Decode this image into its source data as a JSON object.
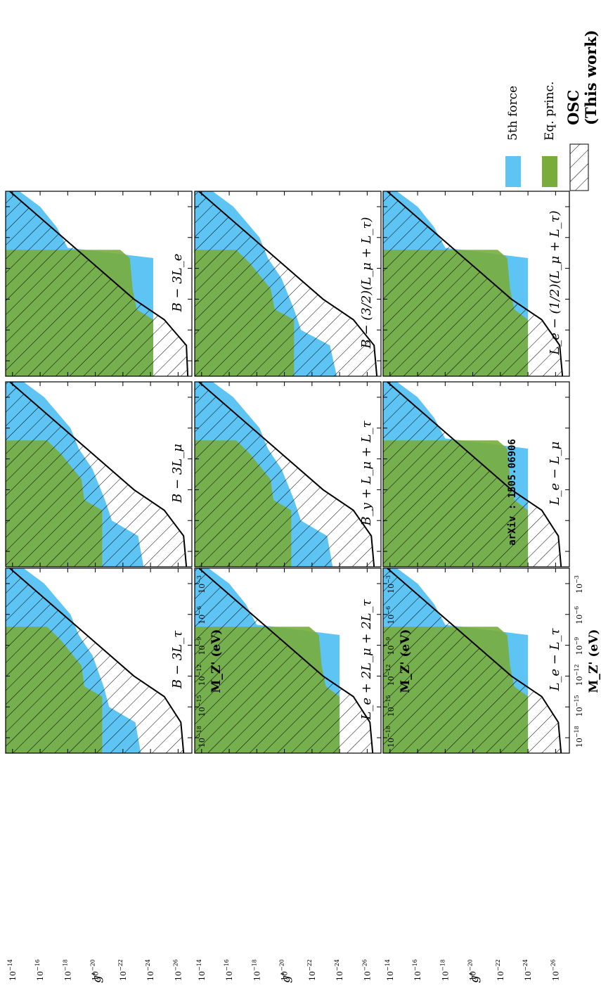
{
  "colors": {
    "fifth_force": "#5ec4f4",
    "eq_principle": "#78ad3c",
    "osc_line": "#000000"
  },
  "legend": {
    "items": [
      {
        "label": "5th force",
        "color": "#5ec4f4"
      },
      {
        "label": "Eq. princ.",
        "color": "#78ad3c"
      }
    ],
    "osc_label": "OSC",
    "osc_sub": "(This work)"
  },
  "annotation": "arXiv : 1505.06906",
  "x_axis_label": "M_Z' (eV)",
  "y_axis_label": "g'",
  "chart_data": [
    {
      "type": "area",
      "panel_label": "B − 3L_e",
      "x_log10_range": [
        -19.5,
        -1.5
      ],
      "y_log10_range": [
        -27,
        -13.5
      ],
      "osc_boundary_log10": [
        [
          -19.5,
          -26.7
        ],
        [
          -16.5,
          -26.6
        ],
        [
          -14,
          -25
        ],
        [
          -12,
          -22.8
        ],
        [
          -1.5,
          -13.8
        ]
      ],
      "fifth_force_log10": [
        [
          -19.5,
          -24.2
        ],
        [
          -8,
          -24.2
        ],
        [
          -7,
          -18
        ],
        [
          -5,
          -17.2
        ],
        [
          -3,
          -16
        ],
        [
          -1.5,
          -14.5
        ]
      ],
      "eq_principle_log10": [
        [
          -19.5,
          -24.2
        ],
        [
          -14,
          -24.2
        ],
        [
          -13,
          -23
        ],
        [
          -11,
          -22.7
        ],
        [
          -8,
          -22.5
        ],
        [
          -7.2,
          -21.8
        ],
        [
          -7.2,
          -13.8
        ]
      ]
    },
    {
      "type": "area",
      "panel_label": "B − 3L_μ",
      "x_log10_range": [
        -19.5,
        -1.5
      ],
      "y_log10_range": [
        -27,
        -13.5
      ],
      "osc_boundary_log10": [
        [
          -19.5,
          -26.6
        ],
        [
          -16.5,
          -26.4
        ],
        [
          -14,
          -25
        ],
        [
          -12,
          -22.8
        ],
        [
          -1.5,
          -13.8
        ]
      ],
      "fifth_force_log10": [
        [
          -19.5,
          -23.5
        ],
        [
          -16.5,
          -23.1
        ],
        [
          -15,
          -21.2
        ],
        [
          -13,
          -20.7
        ],
        [
          -10,
          -19.8
        ],
        [
          -8,
          -18.8
        ],
        [
          -6,
          -18.2
        ],
        [
          -3,
          -16.3
        ],
        [
          -1.5,
          -14.8
        ]
      ],
      "eq_principle_log10": [
        [
          -19.5,
          -20.5
        ],
        [
          -14,
          -20.5
        ],
        [
          -13,
          -19.2
        ],
        [
          -11,
          -19
        ],
        [
          -8.5,
          -17.5
        ],
        [
          -7.2,
          -16.5
        ],
        [
          -7.2,
          -13.8
        ]
      ]
    },
    {
      "type": "area",
      "panel_label": "B − 3L_τ",
      "x_log10_range": [
        -19.5,
        -1.5
      ],
      "y_log10_range": [
        -27,
        -13.5
      ],
      "osc_boundary_log10": [
        [
          -19.5,
          -26.4
        ],
        [
          -16.5,
          -26.2
        ],
        [
          -14,
          -25
        ],
        [
          -12,
          -22.8
        ],
        [
          -1.5,
          -13.8
        ]
      ],
      "fifth_force_log10": [
        [
          -19.5,
          -23.3
        ],
        [
          -16.5,
          -22.9
        ],
        [
          -15,
          -21
        ],
        [
          -13,
          -20.6
        ],
        [
          -10,
          -19.8
        ],
        [
          -8,
          -18.8
        ],
        [
          -6,
          -18.2
        ],
        [
          -3,
          -16.3
        ],
        [
          -1.5,
          -14.8
        ]
      ],
      "eq_principle_log10": [
        [
          -19.5,
          -20.5
        ],
        [
          -14,
          -20.5
        ],
        [
          -13,
          -19.2
        ],
        [
          -11,
          -19
        ],
        [
          -8.5,
          -17.5
        ],
        [
          -7.2,
          -16.5
        ],
        [
          -7.2,
          -13.8
        ]
      ]
    },
    {
      "type": "area",
      "panel_label": "B − (3/2)(L_μ + L_τ)",
      "x_log10_range": [
        -19.5,
        -1.5
      ],
      "y_log10_range": [
        -27,
        -13.5
      ],
      "osc_boundary_log10": [
        [
          -19.5,
          -26.7
        ],
        [
          -16.5,
          -26.5
        ],
        [
          -14,
          -25
        ],
        [
          -12,
          -22.8
        ],
        [
          -1.5,
          -13.8
        ]
      ],
      "fifth_force_log10": [
        [
          -19.5,
          -23.8
        ],
        [
          -16.5,
          -23.3
        ],
        [
          -15,
          -21.2
        ],
        [
          -13,
          -20.7
        ],
        [
          -10,
          -19.8
        ],
        [
          -8,
          -18.8
        ],
        [
          -6,
          -18.2
        ],
        [
          -3,
          -16.3
        ],
        [
          -1.5,
          -14.8
        ]
      ],
      "eq_principle_log10": [
        [
          -19.5,
          -20.7
        ],
        [
          -14,
          -20.7
        ],
        [
          -13,
          -19.3
        ],
        [
          -11,
          -19
        ],
        [
          -8.5,
          -17.5
        ],
        [
          -7.2,
          -16.5
        ],
        [
          -7.2,
          -13.8
        ]
      ]
    },
    {
      "type": "area",
      "panel_label": "L_e − L_μ",
      "x_log10_range": [
        -19.5,
        -1.5
      ],
      "y_log10_range": [
        -27,
        -13.5
      ],
      "osc_boundary_log10": [
        [
          -19.5,
          -26.4
        ],
        [
          -16.5,
          -26.2
        ],
        [
          -14,
          -25
        ],
        [
          -12,
          -22.8
        ],
        [
          -1.5,
          -13.8
        ]
      ],
      "fifth_force_log10": [
        [
          -19.5,
          -24
        ],
        [
          -8,
          -24
        ],
        [
          -7,
          -18
        ],
        [
          -5,
          -17.2
        ],
        [
          -3,
          -16
        ],
        [
          -1.5,
          -14.5
        ]
      ],
      "eq_principle_log10": [
        [
          -19.5,
          -24
        ],
        [
          -14,
          -24
        ],
        [
          -13,
          -23
        ],
        [
          -11,
          -22.7
        ],
        [
          -8,
          -22.5
        ],
        [
          -7.2,
          -21.8
        ],
        [
          -7.2,
          -13.8
        ]
      ]
    },
    {
      "type": "area",
      "panel_label": "L_e − L_τ",
      "x_log10_range": [
        -19.5,
        -1.5
      ],
      "y_log10_range": [
        -27,
        -13.5
      ],
      "osc_boundary_log10": [
        [
          -19.5,
          -26.4
        ],
        [
          -16.5,
          -26.2
        ],
        [
          -14,
          -25
        ],
        [
          -12,
          -22.8
        ],
        [
          -1.5,
          -13.8
        ]
      ],
      "fifth_force_log10": [
        [
          -19.5,
          -24
        ],
        [
          -8,
          -24
        ],
        [
          -7,
          -18
        ],
        [
          -5,
          -17.2
        ],
        [
          -3,
          -16
        ],
        [
          -1.5,
          -14.5
        ]
      ],
      "eq_principle_log10": [
        [
          -19.5,
          -24
        ],
        [
          -14,
          -24
        ],
        [
          -13,
          -23
        ],
        [
          -11,
          -22.7
        ],
        [
          -8,
          -22.5
        ],
        [
          -7.2,
          -21.8
        ],
        [
          -7.2,
          -13.8
        ]
      ]
    },
    {
      "type": "area",
      "panel_label": "L_e − (1/2)(L_μ + L_τ)",
      "x_log10_range": [
        -19.5,
        -1.5
      ],
      "y_log10_range": [
        -27,
        -13.5
      ],
      "osc_boundary_log10": [
        [
          -19.5,
          -26.5
        ],
        [
          -16.5,
          -26.3
        ],
        [
          -14,
          -25
        ],
        [
          -12,
          -22.8
        ],
        [
          -1.5,
          -13.8
        ]
      ],
      "fifth_force_log10": [
        [
          -19.5,
          -24
        ],
        [
          -8,
          -24
        ],
        [
          -7,
          -18
        ],
        [
          -5,
          -17.2
        ],
        [
          -3,
          -16
        ],
        [
          -1.5,
          -14.5
        ]
      ],
      "eq_principle_log10": [
        [
          -19.5,
          -24
        ],
        [
          -14,
          -24
        ],
        [
          -13,
          -23
        ],
        [
          -11,
          -22.7
        ],
        [
          -8,
          -22.5
        ],
        [
          -7.2,
          -21.8
        ],
        [
          -7.2,
          -13.8
        ]
      ]
    },
    {
      "type": "area",
      "panel_label": "B_y + L_μ + L_τ",
      "x_log10_range": [
        -19.5,
        -1.5
      ],
      "y_log10_range": [
        -27,
        -13.5
      ],
      "osc_boundary_log10": [
        [
          -19.5,
          -26.5
        ],
        [
          -16.5,
          -26.3
        ],
        [
          -14,
          -25
        ],
        [
          -12,
          -22.8
        ],
        [
          -1.5,
          -13.8
        ]
      ],
      "fifth_force_log10": [
        [
          -19.5,
          -23.5
        ],
        [
          -16.5,
          -23.1
        ],
        [
          -15,
          -21.2
        ],
        [
          -13,
          -20.7
        ],
        [
          -10,
          -19.8
        ],
        [
          -8,
          -18.8
        ],
        [
          -6,
          -18.2
        ],
        [
          -3,
          -16.3
        ],
        [
          -1.5,
          -14.8
        ]
      ],
      "eq_principle_log10": [
        [
          -19.5,
          -20.5
        ],
        [
          -14,
          -20.5
        ],
        [
          -13,
          -19.2
        ],
        [
          -11,
          -19
        ],
        [
          -8.5,
          -17.5
        ],
        [
          -7.2,
          -16.5
        ],
        [
          -7.2,
          -13.8
        ]
      ]
    },
    {
      "type": "area",
      "panel_label": "L_e + 2L_μ + 2L_τ",
      "x_log10_range": [
        -19.5,
        -1.5
      ],
      "y_log10_range": [
        -27,
        -13.5
      ],
      "osc_boundary_log10": [
        [
          -19.5,
          -26.4
        ],
        [
          -16.5,
          -26.2
        ],
        [
          -14,
          -25
        ],
        [
          -12,
          -22.8
        ],
        [
          -1.5,
          -13.8
        ]
      ],
      "fifth_force_log10": [
        [
          -19.5,
          -24
        ],
        [
          -8,
          -24
        ],
        [
          -7,
          -18
        ],
        [
          -5,
          -17.2
        ],
        [
          -3,
          -16
        ],
        [
          -1.5,
          -14.5
        ]
      ],
      "eq_principle_log10": [
        [
          -19.5,
          -24
        ],
        [
          -14,
          -24
        ],
        [
          -13,
          -23
        ],
        [
          -11,
          -22.7
        ],
        [
          -8,
          -22.5
        ],
        [
          -7.2,
          -21.8
        ],
        [
          -7.2,
          -13.8
        ]
      ]
    }
  ],
  "y_ticks_log10": [
    -14,
    -16,
    -18,
    -20,
    -22,
    -24,
    -26
  ],
  "x_ticks_log10": [
    -18,
    -15,
    -12,
    -9,
    -6,
    -3
  ]
}
